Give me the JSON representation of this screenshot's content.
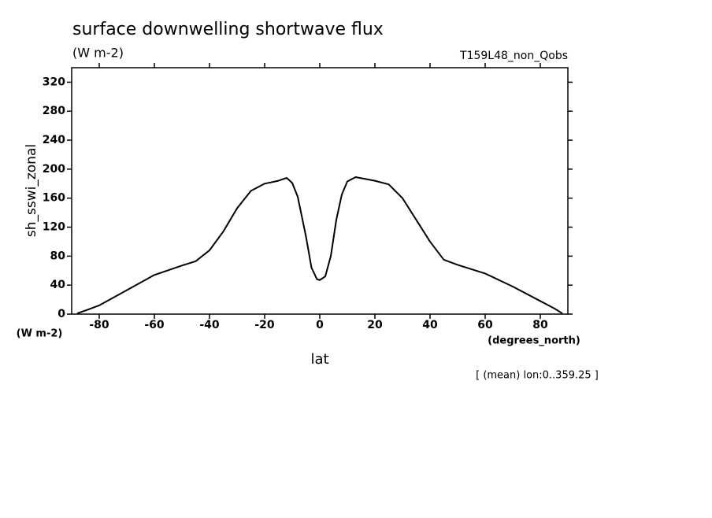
{
  "chart_data": {
    "type": "line",
    "title": "surface downwelling shortwave flux",
    "subtitle": "(W m-2)",
    "annotation": "T159L48_non_Qobs",
    "y_label": "sh_sswi_zonal",
    "y_unit": "(W m-2)",
    "x_unit": "(degrees_north)",
    "x_label": "lat",
    "footnote": "[ (mean) lon:0..359.25 ]",
    "x": [
      -88,
      -85,
      -80,
      -70,
      -60,
      -50,
      -45,
      -40,
      -35,
      -30,
      -25,
      -20,
      -15,
      -12,
      -10,
      -8,
      -5,
      -3,
      -1,
      0,
      2,
      4,
      6,
      8,
      10,
      13,
      20,
      25,
      30,
      35,
      40,
      45,
      50,
      60,
      70,
      80,
      85,
      88
    ],
    "series": [
      {
        "name": "sh_sswi_zonal",
        "color": "#000000",
        "values": [
          1,
          5,
          12,
          33,
          54,
          67,
          73,
          88,
          114,
          146,
          170,
          180,
          184,
          188,
          181,
          162,
          107,
          64,
          48,
          47,
          52,
          80,
          130,
          165,
          183,
          189,
          184,
          179,
          160,
          130,
          100,
          75,
          68,
          56,
          38,
          18,
          8,
          1
        ]
      }
    ],
    "xlim": [
      -90,
      90
    ],
    "xticks": [
      -80,
      -60,
      -40,
      -20,
      0,
      20,
      40,
      60,
      80
    ],
    "ylim": [
      0,
      340
    ],
    "yticks": [
      0,
      40,
      80,
      120,
      160,
      200,
      240,
      280,
      320
    ]
  }
}
